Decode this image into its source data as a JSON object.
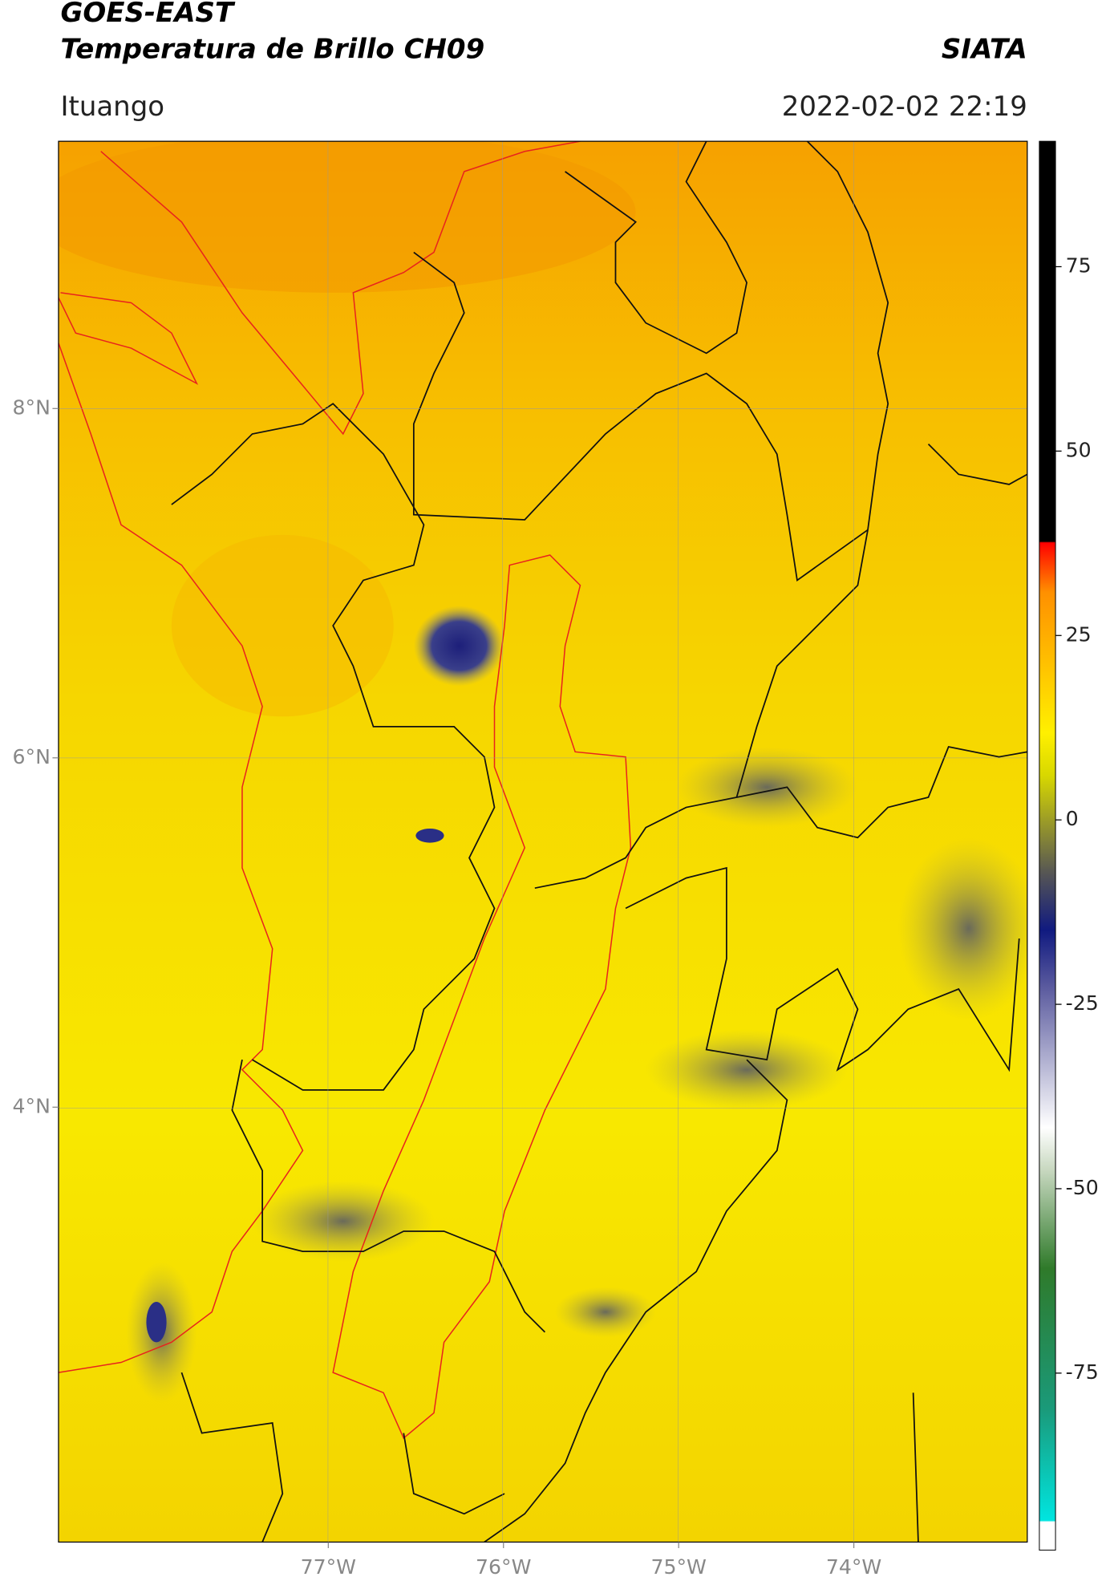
{
  "header": {
    "source": "GOES-EAST",
    "title": "Temperatura de Brillo CH09",
    "org": "SIATA",
    "region": "Ituango",
    "datetime": "2022-02-02 22:19"
  },
  "map": {
    "lonlim": [
      -78.54,
      -73.01
    ],
    "latlim": [
      1.51,
      9.53
    ],
    "lonticks": [
      {
        "value": -77,
        "label": "77°W"
      },
      {
        "value": -76,
        "label": "76°W"
      },
      {
        "value": -75,
        "label": "75°W"
      },
      {
        "value": -74,
        "label": "74°W"
      }
    ],
    "latticks": [
      {
        "value": 8,
        "label": "8°N"
      },
      {
        "value": 6,
        "label": "6°N"
      },
      {
        "value": 4,
        "label": "4°N"
      }
    ]
  },
  "colorbar": {
    "lim": [
      -99,
      92
    ],
    "ticks": [
      75,
      50,
      25,
      0,
      -25,
      -50,
      -75
    ]
  }
}
